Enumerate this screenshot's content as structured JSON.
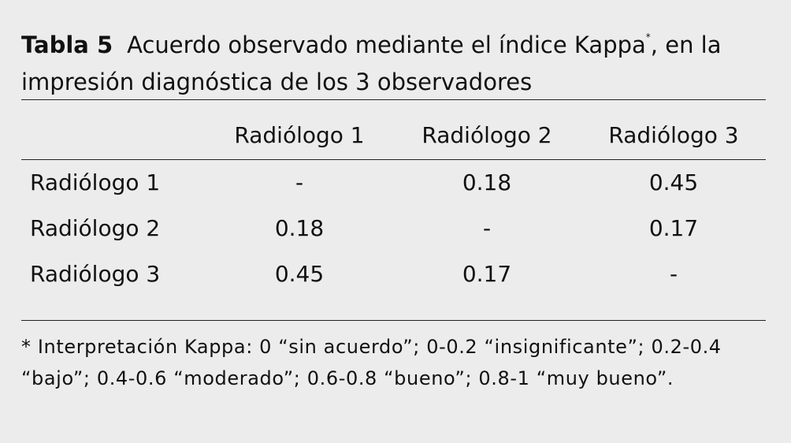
{
  "caption": {
    "label": "Tabla 5",
    "text": "Acuerdo observado mediante el índice Kappa",
    "mark": "*",
    "text_end": ", en la impresión diagnóstica de los 3 observadores"
  },
  "table": {
    "columns": [
      "Radiólogo 1",
      "Radiólogo 2",
      "Radiólogo 3"
    ],
    "rows": [
      {
        "label": "Radiólogo 1",
        "cells": [
          "-",
          "0.18",
          "0.45"
        ]
      },
      {
        "label": "Radiólogo 2",
        "cells": [
          "0.18",
          "-",
          "0.17"
        ]
      },
      {
        "label": "Radiólogo 3",
        "cells": [
          "0.45",
          "0.17",
          "-"
        ]
      }
    ]
  },
  "footnote": "* Interpretación Kappa: 0 “sin acuerdo”; 0-0.2 “insignificante”; 0.2-0.4 “bajo”; 0.4-0.6 “moderado”; 0.6-0.8 “bueno”; 0.8-1 “muy bueno”."
}
